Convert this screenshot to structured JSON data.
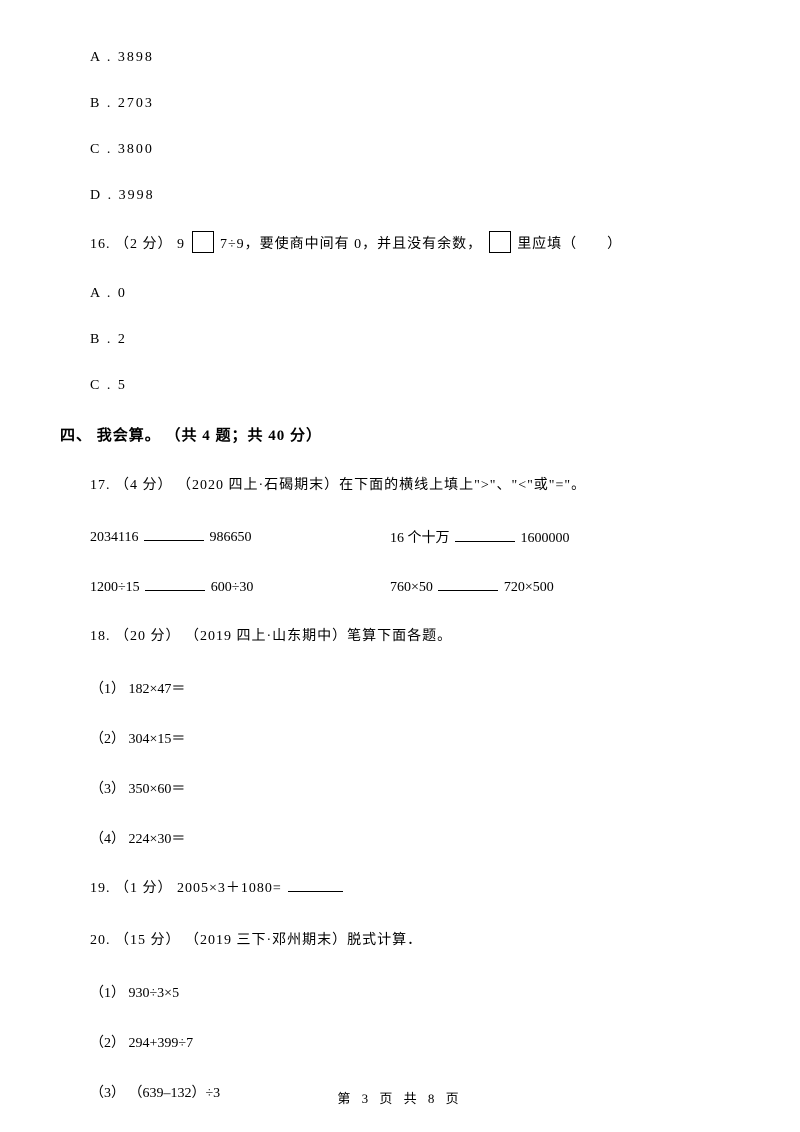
{
  "options": {
    "a": "A . 3898",
    "b": "B . 2703",
    "c": "C . 3800",
    "d": "D . 3998"
  },
  "q16": {
    "prefix": "16. （2 分） 9",
    "mid": "7÷9，要使商中间有 0，并且没有余数，",
    "suffix": "里应填（　　）",
    "opt_a": "A . 0",
    "opt_b": "B . 2",
    "opt_c": "C . 5"
  },
  "section4": {
    "title": "四、 我会算。 （共 4 题；共 40 分）"
  },
  "q17": {
    "text": "17. （4 分） （2020 四上·石碣期末）在下面的横线上填上\">\"、\"<\"或\"=\"。",
    "row1_left_a": "2034116 ",
    "row1_left_b": "986650",
    "row1_right_a": "16 个十万",
    "row1_right_b": "1600000",
    "row2_left_a": "1200÷15",
    "row2_left_b": "600÷30",
    "row2_right_a": "760×50",
    "row2_right_b": "720×500"
  },
  "q18": {
    "text": "18. （20 分） （2019 四上·山东期中）笔算下面各题。",
    "s1": "（1） 182×47＝",
    "s2": "（2） 304×15＝",
    "s3": "（3） 350×60＝",
    "s4": "（4） 224×30＝"
  },
  "q19": {
    "prefix": "19. （1 分） 2005×3＋1080="
  },
  "q20": {
    "text": "20. （15 分） （2019 三下·邓州期末）脱式计算．",
    "s1": "（1） 930÷3×5",
    "s2": "（2） 294+399÷7",
    "s3": "（3） （639–132）÷3"
  },
  "footer": {
    "text": "第 3 页 共 8 页"
  }
}
